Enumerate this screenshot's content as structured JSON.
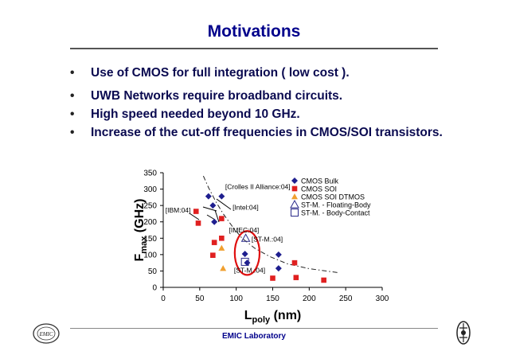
{
  "slide": {
    "title": "Motivations",
    "bullets": [
      "Use of CMOS for full integration ( low cost ).",
      "UWB Networks require broadband circuits.",
      "High speed needed beyond 10 GHz.",
      "Increase of the cut-off frequencies in CMOS/SOI transistors."
    ],
    "footer": "EMIC Laboratory",
    "logo_text": "EMIC"
  },
  "chart_data": {
    "type": "scatter",
    "xlabel_main": "L",
    "xlabel_sub": "poly",
    "xlabel_unit": " (nm)",
    "ylabel_main": "F",
    "ylabel_sub": "max",
    "ylabel_unit": " (GHz)",
    "xlim": [
      0,
      300
    ],
    "ylim": [
      0,
      350
    ],
    "xticks": [
      0,
      50,
      100,
      150,
      200,
      250,
      300
    ],
    "yticks": [
      0,
      50,
      100,
      150,
      200,
      250,
      300,
      350
    ],
    "legend_position": "top-right",
    "series": [
      {
        "name": "CMOS Bulk",
        "marker": "diamond",
        "color": "#1f1f8f",
        "points": [
          [
            62,
            278
          ],
          [
            80,
            278
          ],
          [
            68,
            250
          ],
          [
            70,
            200
          ],
          [
            112,
            102
          ],
          [
            158,
            100
          ],
          [
            158,
            58
          ],
          [
            115,
            75
          ]
        ]
      },
      {
        "name": "CMOS SOI",
        "marker": "square",
        "color": "#e02020",
        "points": [
          [
            45,
            232
          ],
          [
            48,
            196
          ],
          [
            80,
            210
          ],
          [
            80,
            150
          ],
          [
            70,
            137
          ],
          [
            68,
            98
          ],
          [
            180,
            75
          ],
          [
            182,
            30
          ],
          [
            150,
            28
          ],
          [
            220,
            22
          ]
        ]
      },
      {
        "name": "CMOS SOI DTMOS",
        "marker": "triangle",
        "color": "#f0a030",
        "points": [
          [
            80,
            120
          ],
          [
            82,
            58
          ]
        ]
      },
      {
        "name": "ST-M. - Floating-Body",
        "marker": "triangle-open",
        "color": "#2a2a8a",
        "points": [
          [
            113,
            150
          ]
        ]
      },
      {
        "name": "ST-M. - Body-Contact",
        "marker": "square-open",
        "color": "#2a2a8a",
        "points": [
          [
            112,
            78
          ]
        ]
      }
    ],
    "trend_line": [
      [
        55,
        340
      ],
      [
        62,
        305
      ],
      [
        72,
        262
      ],
      [
        82,
        225
      ],
      [
        95,
        185
      ],
      [
        108,
        150
      ],
      [
        125,
        120
      ],
      [
        145,
        95
      ],
      [
        170,
        72
      ],
      [
        200,
        57
      ],
      [
        230,
        48
      ],
      [
        240,
        45
      ]
    ],
    "annotations": [
      {
        "text": "[Crolles II Alliance:04]",
        "x": 85,
        "y": 300
      },
      {
        "text": "[Intel:04]",
        "x": 95,
        "y": 237
      },
      {
        "text": "[IBM:04]",
        "x": 3,
        "y": 228
      },
      {
        "text": "[IMEC:04]",
        "x": 90,
        "y": 168
      },
      {
        "text": "[ST-M.:04]",
        "x": 121,
        "y": 140
      },
      {
        "text": "[ST-M.:04]",
        "x": 97,
        "y": 45
      }
    ],
    "highlight_ellipse": {
      "cx": 115,
      "cy": 105,
      "rx": 17,
      "ry": 67
    }
  }
}
